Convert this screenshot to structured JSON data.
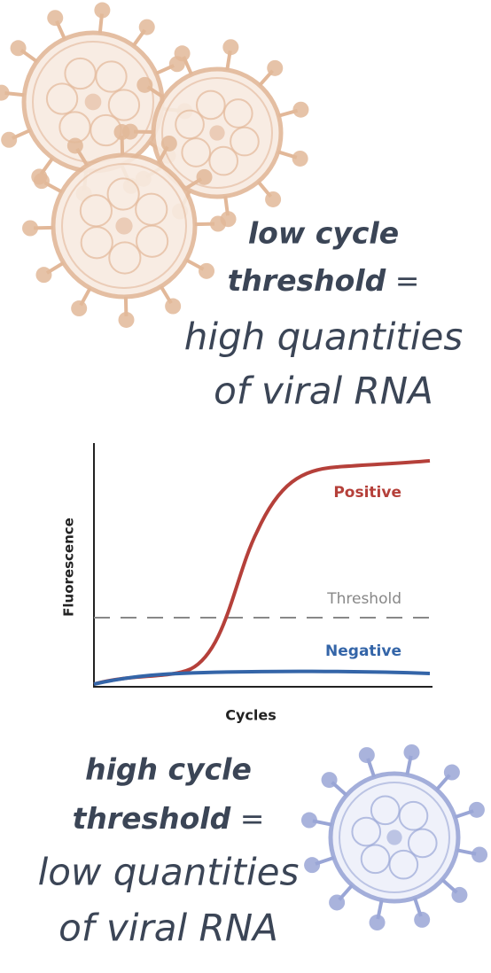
{
  "top_text": {
    "line1": "low cycle",
    "line2_bold": "threshold",
    "line2_rest": "=",
    "line3": "high quantities",
    "line4": "of viral RNA"
  },
  "chart": {
    "y_label": "Fluorescence",
    "x_label": "Cycles",
    "positive_label": "Positive",
    "threshold_label": "Threshold",
    "negative_label": "Negative"
  },
  "bottom_text": {
    "line1": "high cycle",
    "line2_bold": "threshold",
    "line2_rest": "=",
    "line3": "low quantities",
    "line4": "of viral RNA"
  }
}
